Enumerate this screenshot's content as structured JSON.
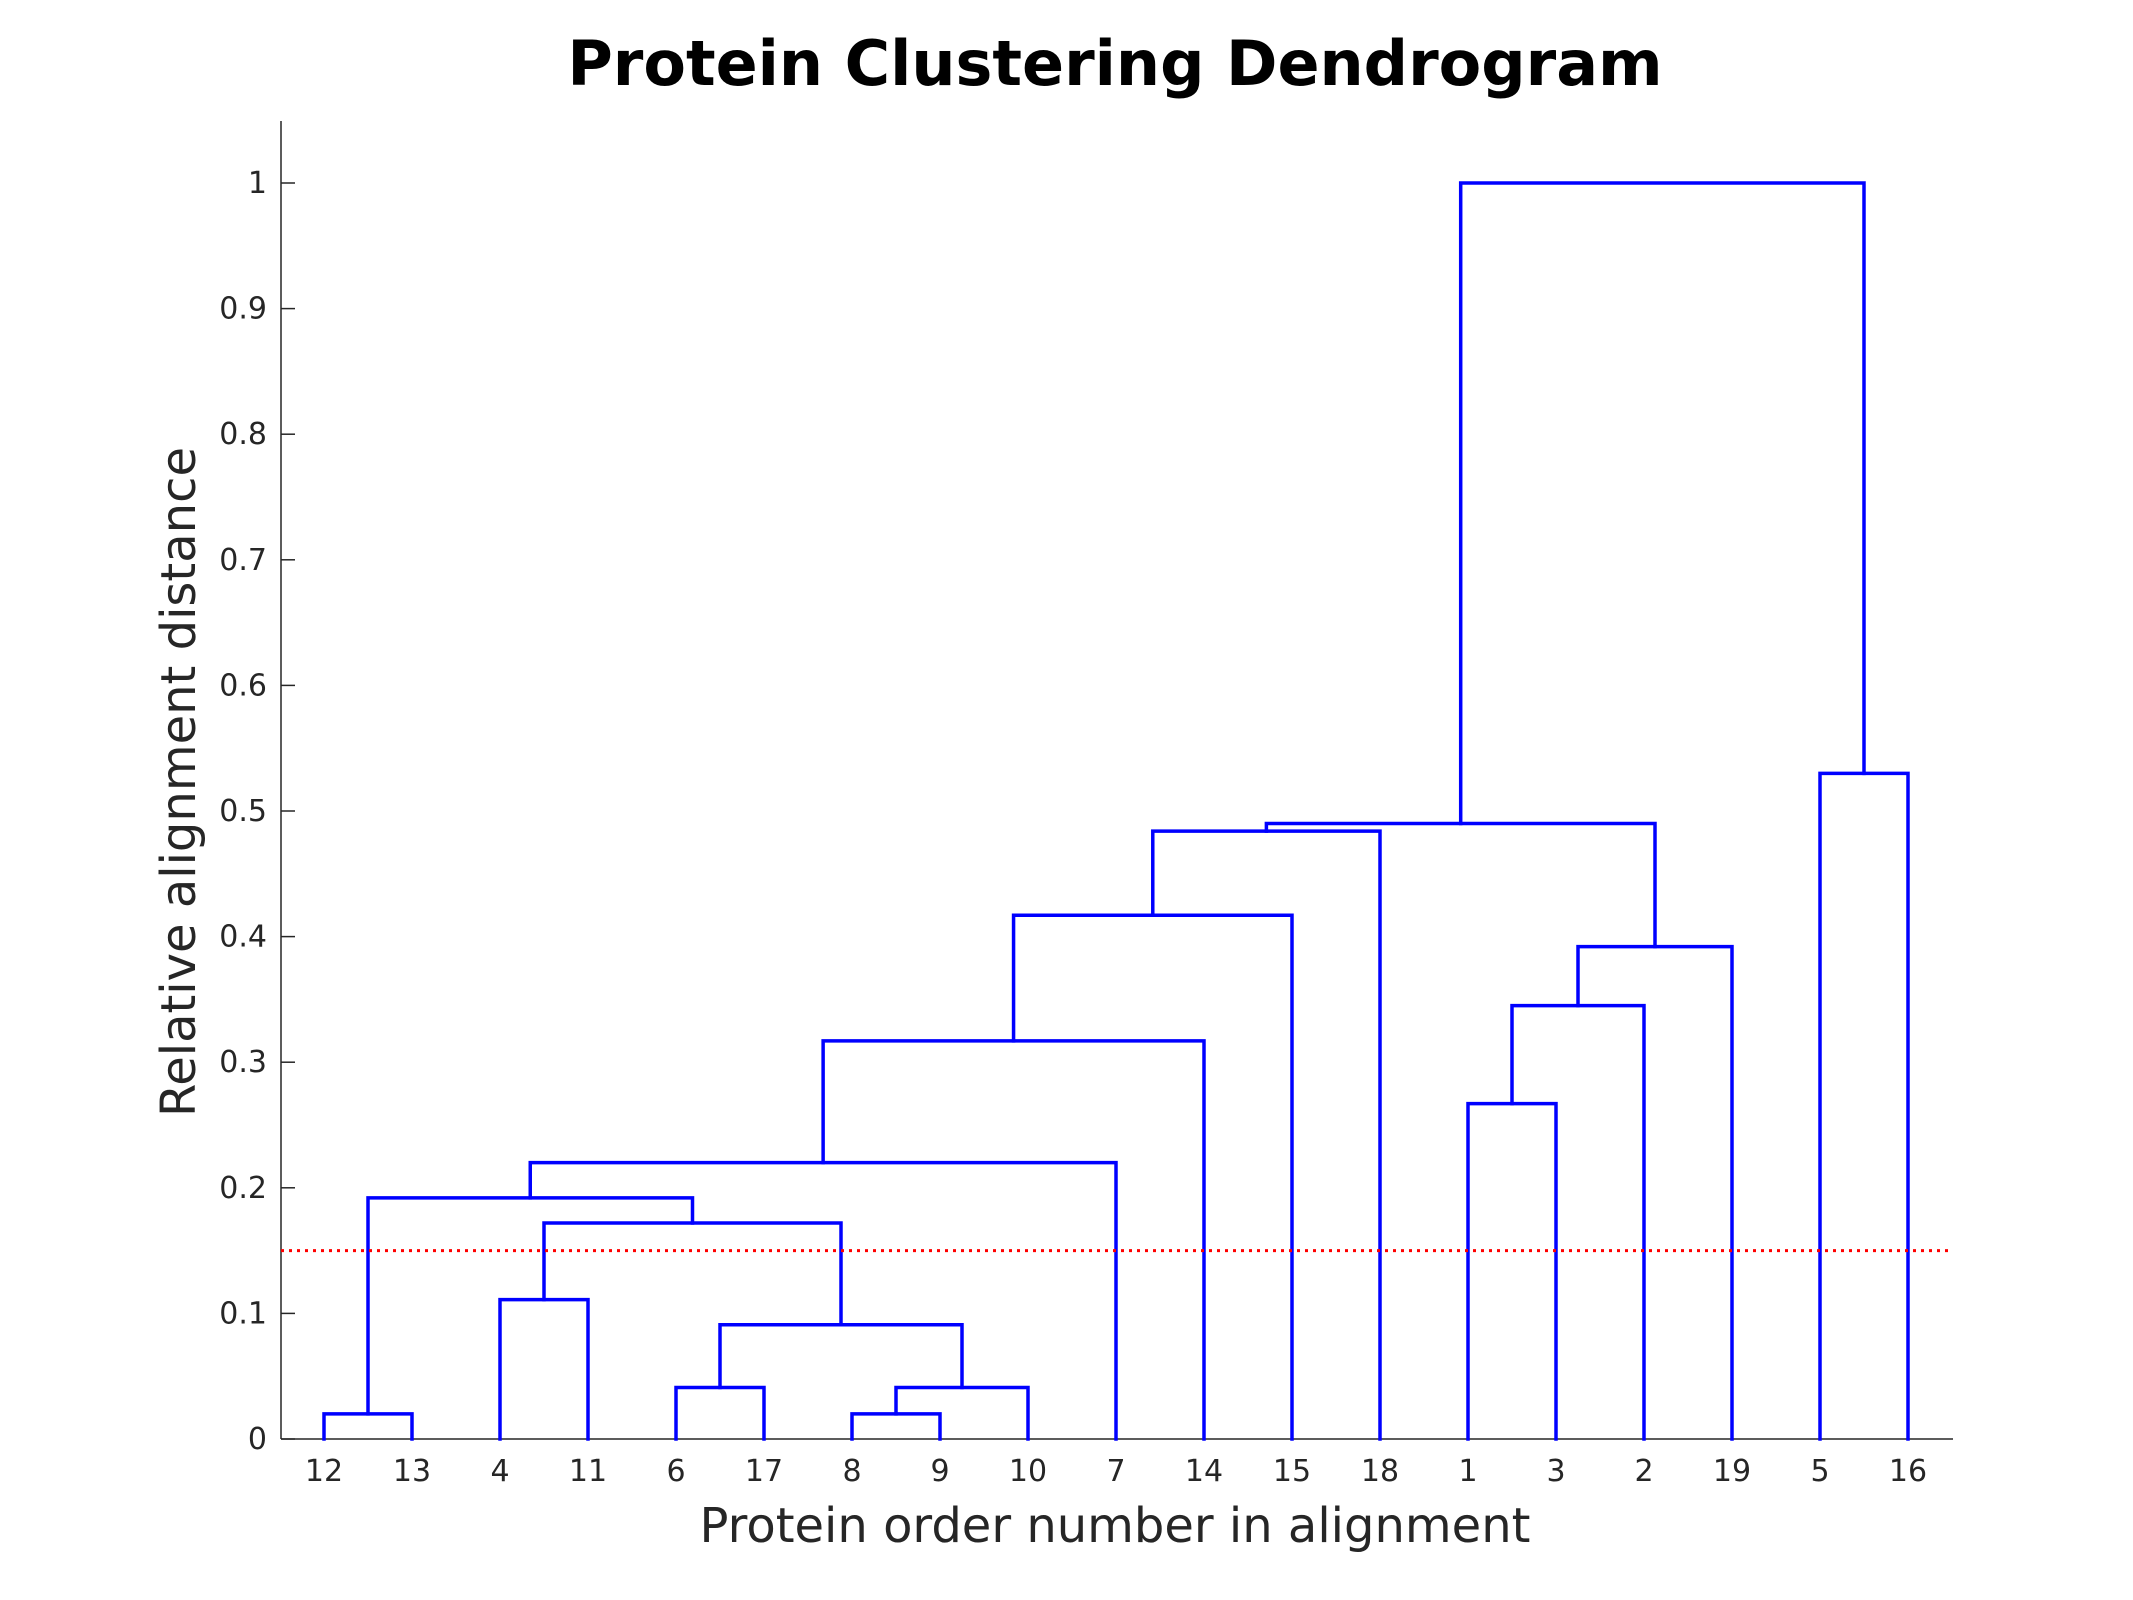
{
  "chart_data": {
    "type": "dendrogram",
    "title": "Protein Clustering Dendrogram",
    "xlabel": "Protein order number in alignment",
    "ylabel": "Relative alignment distance",
    "ylim": [
      0,
      1.05
    ],
    "yticks": [
      0,
      0.1,
      0.2,
      0.3,
      0.4,
      0.5,
      0.6,
      0.7,
      0.8,
      0.9,
      1
    ],
    "ytick_labels": [
      "0",
      "0.1",
      "0.2",
      "0.3",
      "0.4",
      "0.5",
      "0.6",
      "0.7",
      "0.8",
      "0.9",
      "1"
    ],
    "leaf_order": [
      "12",
      "13",
      "4",
      "11",
      "6",
      "17",
      "8",
      "9",
      "10",
      "7",
      "14",
      "15",
      "18",
      "1",
      "3",
      "2",
      "19",
      "5",
      "16"
    ],
    "merges": [
      {
        "id": "A",
        "children": [
          "12",
          "13"
        ],
        "height": 0.02
      },
      {
        "id": "B",
        "children": [
          "4",
          "11"
        ],
        "height": 0.111
      },
      {
        "id": "C",
        "children": [
          "6",
          "17"
        ],
        "height": 0.041
      },
      {
        "id": "D",
        "children": [
          "8",
          "9"
        ],
        "height": 0.02
      },
      {
        "id": "E",
        "children": [
          "D",
          "10"
        ],
        "height": 0.041
      },
      {
        "id": "F",
        "children": [
          "C",
          "E"
        ],
        "height": 0.091
      },
      {
        "id": "G",
        "children": [
          "B",
          "F"
        ],
        "height": 0.172
      },
      {
        "id": "H",
        "children": [
          "A",
          "G"
        ],
        "height": 0.192
      },
      {
        "id": "I",
        "children": [
          "H",
          "7"
        ],
        "height": 0.22
      },
      {
        "id": "J",
        "children": [
          "I",
          "14"
        ],
        "height": 0.317
      },
      {
        "id": "K",
        "children": [
          "J",
          "15"
        ],
        "height": 0.417
      },
      {
        "id": "L",
        "children": [
          "K",
          "18"
        ],
        "height": 0.484
      },
      {
        "id": "M",
        "children": [
          "1",
          "3"
        ],
        "height": 0.267
      },
      {
        "id": "N",
        "children": [
          "M",
          "2"
        ],
        "height": 0.345
      },
      {
        "id": "O",
        "children": [
          "N",
          "19"
        ],
        "height": 0.392
      },
      {
        "id": "P",
        "children": [
          "L",
          "O"
        ],
        "height": 0.49
      },
      {
        "id": "Q",
        "children": [
          "5",
          "16"
        ],
        "height": 0.53
      },
      {
        "id": "R",
        "children": [
          "P",
          "Q"
        ],
        "height": 1.0
      }
    ],
    "threshold": 0.15,
    "colors": {
      "links": "#0000ff",
      "threshold": "#ff0000",
      "axis": "#262626",
      "title": "#000000"
    }
  }
}
